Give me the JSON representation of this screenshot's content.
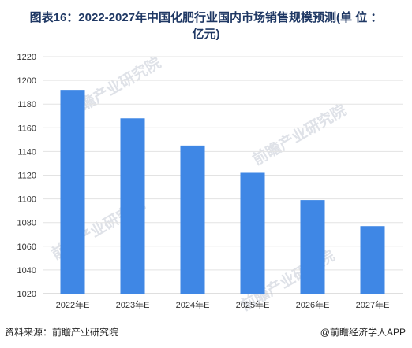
{
  "title_line1": "图表16：2022-2027年中国化肥行业国内市场销售规模预测(单 位 ：",
  "title_line2": "亿元)",
  "footer": {
    "source": "资料来源：前瞻产业研究院",
    "app": "@前瞻经济学人APP"
  },
  "watermark": "前瞻产业研究院",
  "chart_data": {
    "type": "bar",
    "categories": [
      "2022年E",
      "2023年E",
      "2024年E",
      "2025年E",
      "2026年E",
      "2027年E"
    ],
    "values": [
      1192,
      1168,
      1145,
      1122,
      1099,
      1077
    ],
    "ylim": [
      1020,
      1220
    ],
    "yticks": [
      1020,
      1040,
      1060,
      1080,
      1100,
      1120,
      1140,
      1160,
      1180,
      1200,
      1220
    ],
    "grid": true,
    "bar_color": "#3f87e5"
  }
}
